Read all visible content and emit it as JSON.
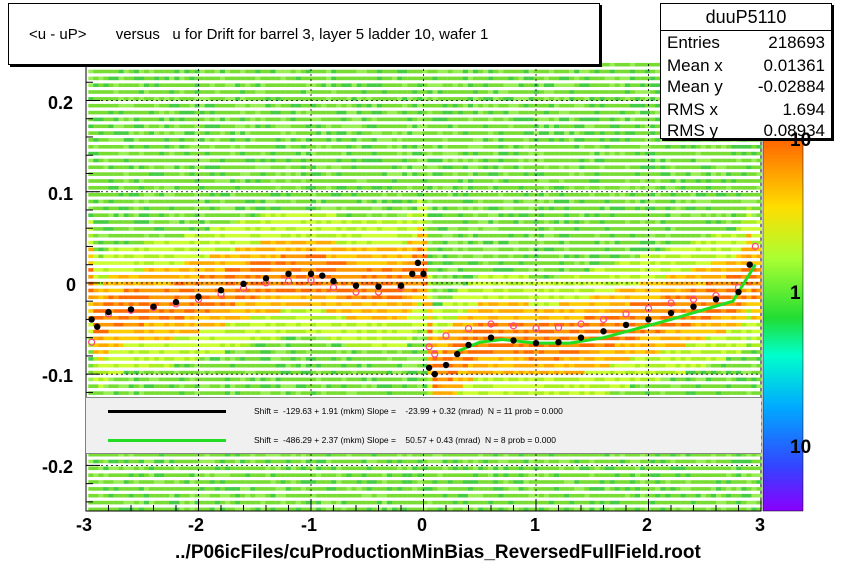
{
  "chart_data": {
    "type": "scatter",
    "title": "<u - uP>       versus   u for Drift for barrel 3, layer 5 ladder 10, wafer 1",
    "xlabel": "../P06icFiles/cuProductionMinBias_ReversedFullField.root",
    "ylabel": "",
    "xlim": [
      -3,
      3
    ],
    "ylim": [
      -0.25,
      0.24
    ],
    "x_ticks": [
      "-3",
      "-2",
      "-1",
      "0",
      "1",
      "2",
      "3"
    ],
    "y_ticks": [
      "0.2",
      "0.1",
      "0",
      "-0.1",
      "-0.2"
    ],
    "grid": true,
    "z_scale": "log",
    "z_labels": [
      "10",
      "1",
      "10"
    ],
    "stats": {
      "name": "duuP5110",
      "rows": [
        {
          "key": "Entries",
          "value": "218693"
        },
        {
          "key": "Mean x",
          "value": "0.01361"
        },
        {
          "key": "Mean y",
          "value": "-0.02884"
        },
        {
          "key": "RMS x",
          "value": "1.694"
        },
        {
          "key": "RMS y",
          "value": "0.08934"
        }
      ]
    },
    "legend": [
      {
        "color": "#000000",
        "text": "Shift =  -129.63 + 1.91 (mkm) Slope =    -23.99 + 0.32 (mrad)  N = 11 prob = 0.000"
      },
      {
        "color": "#22dd22",
        "text": "Shift =  -486.29 + 2.37 (mkm) Slope =    50.57 + 0.43 (mrad)  N = 8 prob = 0.000"
      }
    ],
    "series": [
      {
        "color": "#000000",
        "x": [
          -2.95,
          -2.9,
          -2.8,
          -2.6,
          -2.4,
          -2.2,
          -2.0,
          -1.8,
          -1.6,
          -1.4,
          -1.2,
          -1.0,
          -0.9,
          -0.8,
          -0.6,
          -0.4,
          -0.2,
          -0.1,
          -0.05,
          0.0,
          0.05,
          0.1,
          0.2,
          0.3,
          0.4,
          0.6,
          0.8,
          1.0,
          1.2,
          1.4,
          1.6,
          1.8,
          2.0,
          2.2,
          2.4,
          2.6,
          2.8,
          2.9
        ],
        "y": [
          -0.04,
          -0.048,
          -0.032,
          -0.029,
          -0.026,
          -0.021,
          -0.015,
          -0.008,
          -0.001,
          0.005,
          0.01,
          0.01,
          0.008,
          0.002,
          -0.003,
          -0.004,
          -0.003,
          0.01,
          0.022,
          0.01,
          -0.093,
          -0.1,
          -0.09,
          -0.078,
          -0.068,
          -0.06,
          -0.063,
          -0.066,
          -0.065,
          -0.06,
          -0.053,
          -0.046,
          -0.04,
          -0.033,
          -0.026,
          -0.018,
          -0.01,
          0.02
        ]
      },
      {
        "color": "#ff4488",
        "x": [
          -2.95,
          -2.8,
          -2.6,
          -2.4,
          -2.2,
          -2.0,
          -1.8,
          -1.6,
          -1.4,
          -1.2,
          -1.0,
          -0.8,
          -0.6,
          -0.4,
          -0.2,
          0.05,
          0.1,
          0.2,
          0.4,
          0.6,
          0.8,
          1.0,
          1.2,
          1.4,
          1.6,
          1.8,
          2.0,
          2.2,
          2.4,
          2.6,
          2.8,
          2.95
        ],
        "y": [
          -0.065,
          -0.034,
          -0.03,
          -0.027,
          -0.023,
          -0.018,
          -0.012,
          -0.006,
          0.0,
          0.002,
          0.003,
          -0.005,
          -0.01,
          -0.01,
          -0.005,
          -0.07,
          -0.078,
          -0.058,
          -0.05,
          -0.045,
          -0.047,
          -0.05,
          -0.049,
          -0.045,
          -0.04,
          -0.034,
          -0.028,
          -0.022,
          -0.018,
          -0.014,
          -0.005,
          0.04
        ]
      },
      {
        "color": "#22dd22",
        "x": [
          0.3,
          0.5,
          0.7,
          1.0,
          1.3,
          1.6,
          1.9,
          2.2,
          2.5,
          2.75,
          2.85,
          2.95
        ],
        "y": [
          -0.075,
          -0.065,
          -0.062,
          -0.066,
          -0.066,
          -0.06,
          -0.05,
          -0.04,
          -0.029,
          -0.02,
          0.0,
          0.02
        ]
      }
    ]
  }
}
